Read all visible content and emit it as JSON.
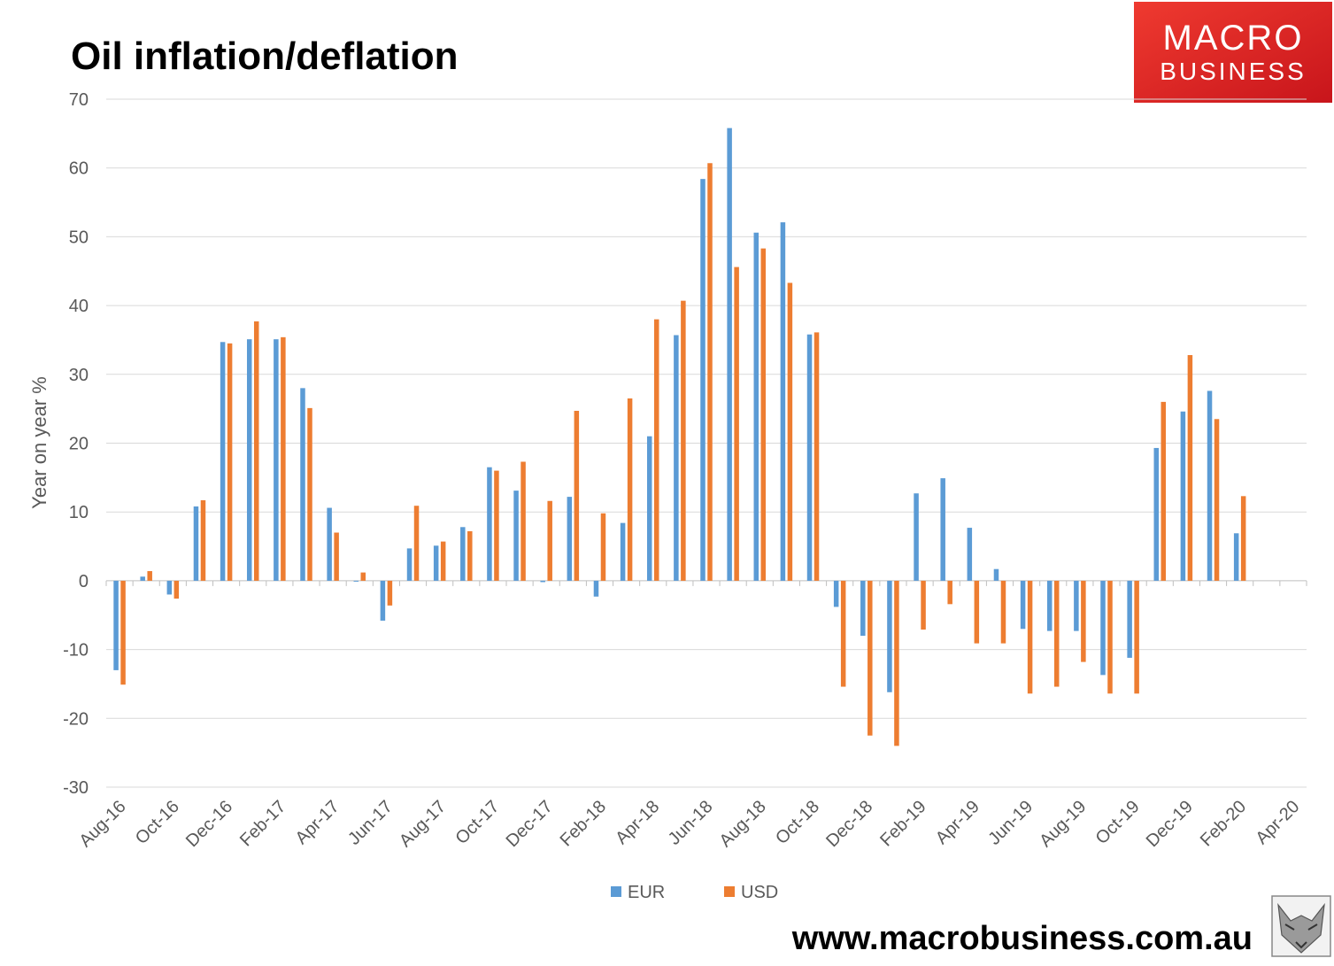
{
  "title": "Oil inflation/deflation",
  "logo": {
    "line1": "MACRO",
    "line2": "BUSINESS",
    "bg": "#e8201f"
  },
  "footer": {
    "url": "www.macrobusiness.com.au"
  },
  "chart_data": {
    "type": "bar",
    "title": "Oil inflation/deflation",
    "xlabel": "",
    "ylabel": "Year on year %",
    "ylim": [
      -30,
      70
    ],
    "yticks": [
      70,
      60,
      50,
      40,
      30,
      20,
      10,
      0,
      -10,
      -20,
      -30
    ],
    "grid": true,
    "legend_position": "bottom",
    "x_tick_labels": [
      "Aug-16",
      "Oct-16",
      "Dec-16",
      "Feb-17",
      "Apr-17",
      "Jun-17",
      "Aug-17",
      "Oct-17",
      "Dec-17",
      "Feb-18",
      "Apr-18",
      "Jun-18",
      "Aug-18",
      "Oct-18",
      "Dec-18",
      "Feb-19",
      "Apr-19",
      "Jun-19",
      "Aug-19",
      "Oct-19",
      "Dec-19",
      "Feb-20",
      "Apr-20"
    ],
    "categories": [
      "Aug-16",
      "Sep-16",
      "Oct-16",
      "Nov-16",
      "Dec-16",
      "Jan-17",
      "Feb-17",
      "Mar-17",
      "Apr-17",
      "May-17",
      "Jun-17",
      "Jul-17",
      "Aug-17",
      "Sep-17",
      "Oct-17",
      "Nov-17",
      "Dec-17",
      "Jan-18",
      "Feb-18",
      "Mar-18",
      "Apr-18",
      "May-18",
      "Jun-18",
      "Jul-18",
      "Aug-18",
      "Sep-18",
      "Oct-18",
      "Nov-18",
      "Dec-18",
      "Jan-19",
      "Feb-19",
      "Mar-19",
      "Apr-19",
      "May-19",
      "Jun-19",
      "Jul-19",
      "Aug-19",
      "Sep-19",
      "Oct-19",
      "Nov-19",
      "Dec-19",
      "Jan-20",
      "Feb-20",
      "Mar-20",
      "Apr-20"
    ],
    "series": [
      {
        "name": "EUR",
        "color": "#5b9bd5",
        "values": [
          -13,
          0.6,
          -2,
          10.8,
          34.7,
          35.1,
          35.1,
          28,
          10.6,
          0,
          -5.8,
          4.7,
          5.1,
          7.8,
          16.5,
          13.1,
          -0.2,
          12.2,
          -2.3,
          8.4,
          21,
          35.7,
          58.4,
          65.8,
          50.6,
          52.1,
          35.8,
          -3.8,
          -8,
          -16.2,
          12.7,
          14.9,
          7.7,
          1.7,
          -7,
          -7.3,
          -7.3,
          -13.7,
          -11.2,
          19.3,
          24.6,
          27.6,
          6.9,
          null,
          null
        ]
      },
      {
        "name": "USD",
        "color": "#ed7d31",
        "values": [
          -15.1,
          1.4,
          -2.6,
          11.7,
          34.5,
          37.7,
          35.4,
          25.1,
          7,
          1.2,
          -3.6,
          10.9,
          5.7,
          7.2,
          16,
          17.3,
          11.6,
          24.7,
          9.8,
          26.5,
          38,
          40.7,
          60.7,
          45.6,
          48.3,
          43.3,
          36.1,
          -15.4,
          -22.5,
          -24,
          -7.1,
          -3.4,
          -9.1,
          -9.1,
          -16.4,
          -15.4,
          -11.8,
          -16.4,
          -16.4,
          26,
          32.8,
          23.5,
          12.3,
          null,
          null
        ]
      }
    ]
  }
}
